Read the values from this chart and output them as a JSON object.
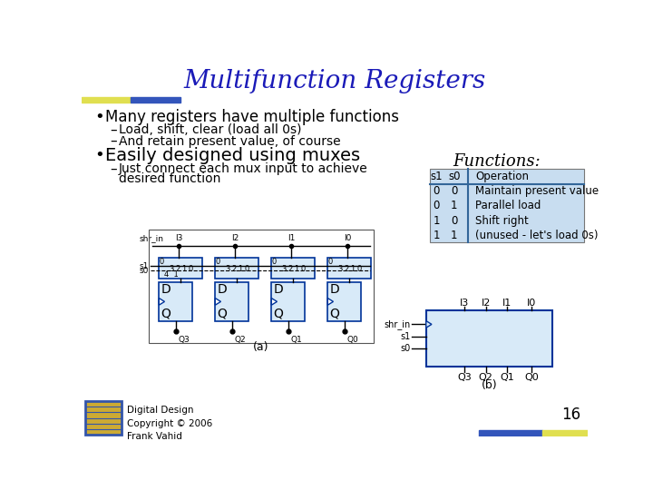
{
  "title": "Multifunction Registers",
  "title_color": "#1a1ab8",
  "title_fontsize": 20,
  "bg_color": "#ffffff",
  "bullet1": "Many registers have multiple functions",
  "sub1a": "Load, shift, clear (load all 0s)",
  "sub1b": "And retain present value, of course",
  "bullet2": "Easily designed using muxes",
  "sub2a": "Just connect each mux input to achieve",
  "sub2b": "desired function",
  "functions_title": "Functions:",
  "table_headers": [
    "s1",
    "s0",
    "Operation"
  ],
  "table_rows": [
    [
      "0",
      "0",
      "Maintain present value"
    ],
    [
      "0",
      "1",
      "Parallel load"
    ],
    [
      "1",
      "0",
      "Shift right"
    ],
    [
      "1",
      "1",
      "(unused - let's load 0s)"
    ]
  ],
  "table_bg": "#c8ddf0",
  "table_line_color": "#336699",
  "footer_text": "Digital Design\nCopyright © 2006\nFrank Vahid",
  "page_num": "16",
  "text_color": "#000000",
  "label_a": "(a)",
  "label_b": "(b)",
  "mux_fill": "#d8eaf8",
  "dff_fill": "#d8eaf8",
  "wire_color": "#000000",
  "box_edge": "#003399"
}
